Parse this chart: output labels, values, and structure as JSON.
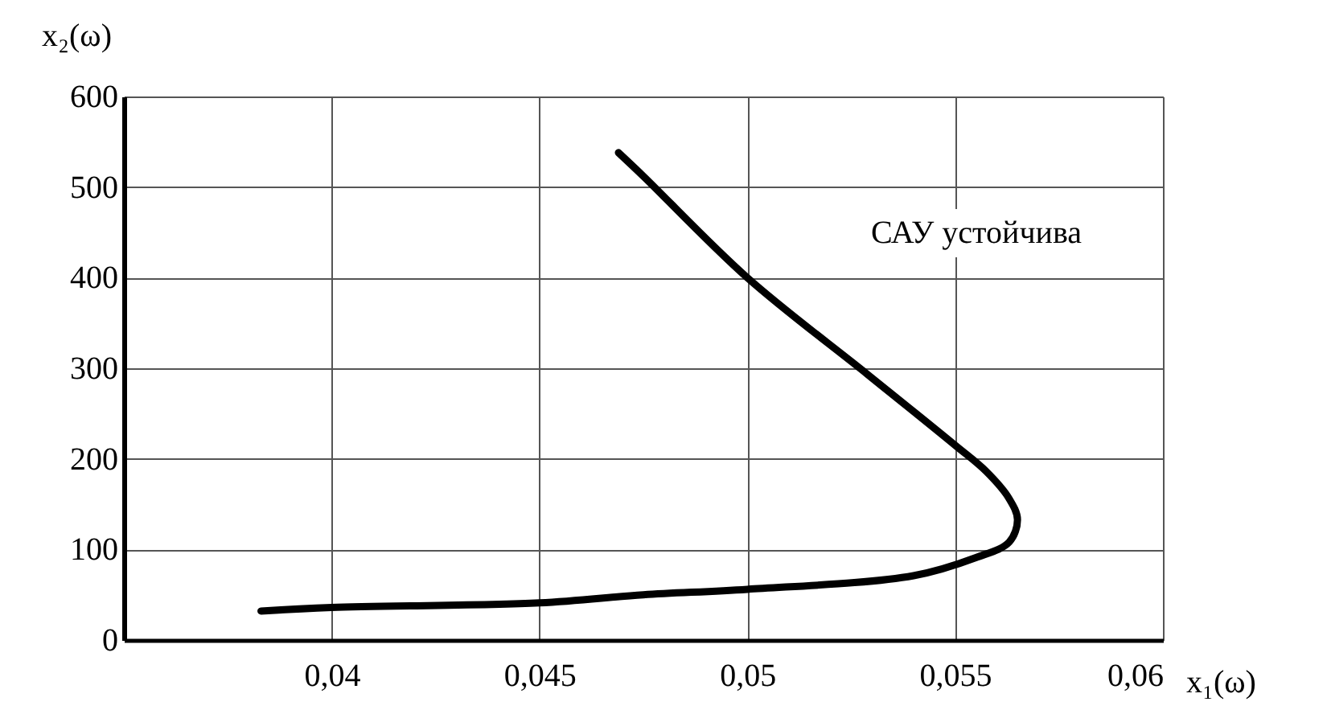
{
  "chart_data": {
    "type": "line",
    "xlabel": "x₁(ω)",
    "ylabel": "x₂(ω)",
    "annotations": [
      "САУ устойчива"
    ],
    "series": [
      {
        "color": "#000000",
        "x": [
          0.0383,
          0.04,
          0.045,
          0.0475,
          0.05,
          0.054,
          0.0555,
          0.0563,
          0.0565,
          0.0563,
          0.05575,
          0.055,
          0.0529,
          0.05,
          0.0475,
          0.0469
        ],
        "values": [
          32,
          36,
          41,
          50,
          56,
          71,
          91,
          108,
          133,
          156,
          186,
          215,
          293,
          400,
          512,
          538
        ]
      }
    ],
    "xlim": [
      0.035,
      0.06
    ],
    "xticks": [
      {
        "value": 0.04,
        "label": "0,04"
      },
      {
        "value": 0.045,
        "label": "0,045"
      },
      {
        "value": 0.05,
        "label": "0,05"
      },
      {
        "value": 0.055,
        "label": "0,055"
      },
      {
        "value": 0.06,
        "label": "0,06"
      }
    ],
    "ylim": [
      0,
      600
    ],
    "yticks": [
      0,
      100,
      200,
      300,
      400,
      500,
      600
    ],
    "grid": true,
    "marker": "none",
    "line_style": "solid"
  }
}
